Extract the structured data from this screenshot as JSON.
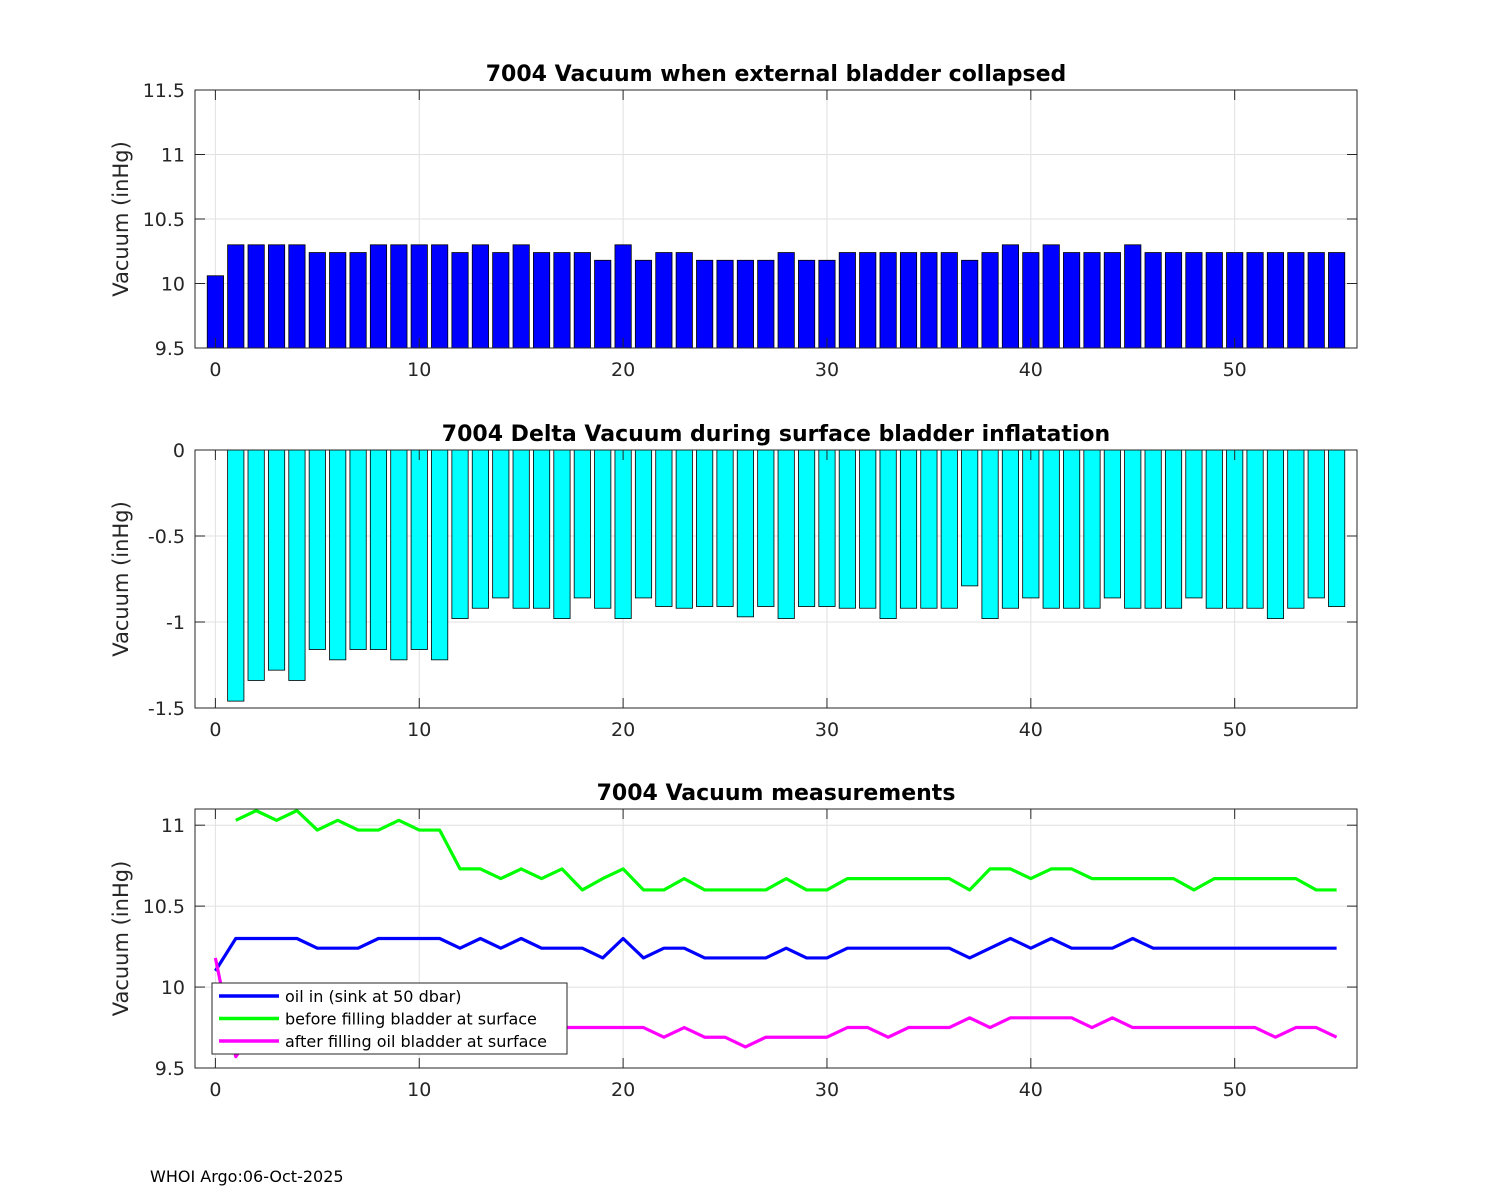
{
  "footer": "WHOI Argo:06-Oct-2025",
  "chart_data": [
    {
      "type": "bar",
      "title": "7004 Vacuum when external bladder collapsed",
      "ylabel": "Vacuum (inHg)",
      "xlim": [
        -1,
        56
      ],
      "ylim": [
        9.5,
        11.5
      ],
      "xticks": [
        0,
        10,
        20,
        30,
        40,
        50
      ],
      "yticks": [
        9.5,
        10,
        10.5,
        11,
        11.5
      ],
      "grid": true,
      "color": "#0000ff",
      "x": [
        0,
        1,
        2,
        3,
        4,
        5,
        6,
        7,
        8,
        9,
        10,
        11,
        12,
        13,
        14,
        15,
        16,
        17,
        18,
        19,
        20,
        21,
        22,
        23,
        24,
        25,
        26,
        27,
        28,
        29,
        30,
        31,
        32,
        33,
        34,
        35,
        36,
        37,
        38,
        39,
        40,
        41,
        42,
        43,
        44,
        45,
        46,
        47,
        48,
        49,
        50,
        51,
        52,
        53,
        54,
        55
      ],
      "values": [
        10.06,
        10.3,
        10.3,
        10.3,
        10.3,
        10.24,
        10.24,
        10.24,
        10.3,
        10.3,
        10.3,
        10.3,
        10.24,
        10.3,
        10.24,
        10.3,
        10.24,
        10.24,
        10.24,
        10.18,
        10.3,
        10.18,
        10.24,
        10.24,
        10.18,
        10.18,
        10.18,
        10.18,
        10.24,
        10.18,
        10.18,
        10.24,
        10.24,
        10.24,
        10.24,
        10.24,
        10.24,
        10.18,
        10.24,
        10.3,
        10.24,
        10.3,
        10.24,
        10.24,
        10.24,
        10.3,
        10.24,
        10.24,
        10.24,
        10.24,
        10.24,
        10.24,
        10.24,
        10.24,
        10.24,
        10.24
      ]
    },
    {
      "type": "bar",
      "title": "7004 Delta Vacuum during surface bladder inflatation",
      "ylabel": "Vacuum (inHg)",
      "xlim": [
        -1,
        56
      ],
      "ylim": [
        -1.5,
        0
      ],
      "xticks": [
        0,
        10,
        20,
        30,
        40,
        50
      ],
      "yticks": [
        -1.5,
        -1,
        -0.5,
        0
      ],
      "grid": true,
      "color": "#00ffff",
      "x": [
        1,
        2,
        3,
        4,
        5,
        6,
        7,
        8,
        9,
        10,
        11,
        12,
        13,
        14,
        15,
        16,
        17,
        18,
        19,
        20,
        21,
        22,
        23,
        24,
        25,
        26,
        27,
        28,
        29,
        30,
        31,
        32,
        33,
        34,
        35,
        36,
        37,
        38,
        39,
        40,
        41,
        42,
        43,
        44,
        45,
        46,
        47,
        48,
        49,
        50,
        51,
        52,
        53,
        54,
        55
      ],
      "values": [
        -1.46,
        -1.34,
        -1.28,
        -1.34,
        -1.16,
        -1.22,
        -1.16,
        -1.16,
        -1.22,
        -1.16,
        -1.22,
        -0.98,
        -0.92,
        -0.86,
        -0.92,
        -0.92,
        -0.98,
        -0.86,
        -0.92,
        -0.98,
        -0.86,
        -0.91,
        -0.92,
        -0.91,
        -0.91,
        -0.97,
        -0.91,
        -0.98,
        -0.91,
        -0.91,
        -0.92,
        -0.92,
        -0.98,
        -0.92,
        -0.92,
        -0.92,
        -0.79,
        -0.98,
        -0.92,
        -0.86,
        -0.92,
        -0.92,
        -0.92,
        -0.86,
        -0.92,
        -0.92,
        -0.92,
        -0.86,
        -0.92,
        -0.92,
        -0.92,
        -0.98,
        -0.92,
        -0.86,
        -0.91
      ]
    },
    {
      "type": "line",
      "title": "7004 Vacuum measurements",
      "ylabel": "Vacuum (inHg)",
      "xlim": [
        -1,
        56
      ],
      "ylim": [
        9.5,
        11.1
      ],
      "xticks": [
        0,
        10,
        20,
        30,
        40,
        50
      ],
      "yticks": [
        9.5,
        10,
        10.5,
        11
      ],
      "grid": true,
      "legend_position": "lower-left",
      "series": [
        {
          "name": "oil in (sink at 50 dbar)",
          "color": "#0000ff",
          "x": [
            0,
            1,
            2,
            3,
            4,
            5,
            6,
            7,
            8,
            9,
            10,
            11,
            12,
            13,
            14,
            15,
            16,
            17,
            18,
            19,
            20,
            21,
            22,
            23,
            24,
            25,
            26,
            27,
            28,
            29,
            30,
            31,
            32,
            33,
            34,
            35,
            36,
            37,
            38,
            39,
            40,
            41,
            42,
            43,
            44,
            45,
            46,
            47,
            48,
            49,
            50,
            51,
            52,
            53,
            54,
            55
          ],
          "values": [
            10.1,
            10.3,
            10.3,
            10.3,
            10.3,
            10.24,
            10.24,
            10.24,
            10.3,
            10.3,
            10.3,
            10.3,
            10.24,
            10.3,
            10.24,
            10.3,
            10.24,
            10.24,
            10.24,
            10.18,
            10.3,
            10.18,
            10.24,
            10.24,
            10.18,
            10.18,
            10.18,
            10.18,
            10.24,
            10.18,
            10.18,
            10.24,
            10.24,
            10.24,
            10.24,
            10.24,
            10.24,
            10.18,
            10.24,
            10.3,
            10.24,
            10.3,
            10.24,
            10.24,
            10.24,
            10.3,
            10.24,
            10.24,
            10.24,
            10.24,
            10.24,
            10.24,
            10.24,
            10.24,
            10.24,
            10.24
          ]
        },
        {
          "name": "before filling bladder at surface",
          "color": "#00ff00",
          "x": [
            1,
            2,
            3,
            4,
            5,
            6,
            7,
            8,
            9,
            10,
            11,
            12,
            13,
            14,
            15,
            16,
            17,
            18,
            19,
            20,
            21,
            22,
            23,
            24,
            25,
            26,
            27,
            28,
            29,
            30,
            31,
            32,
            33,
            34,
            35,
            36,
            37,
            38,
            39,
            40,
            41,
            42,
            43,
            44,
            45,
            46,
            47,
            48,
            49,
            50,
            51,
            52,
            53,
            54,
            55
          ],
          "values": [
            11.03,
            11.09,
            11.03,
            11.09,
            10.97,
            11.03,
            10.97,
            10.97,
            11.03,
            10.97,
            10.97,
            10.73,
            10.73,
            10.67,
            10.73,
            10.67,
            10.73,
            10.6,
            10.67,
            10.73,
            10.6,
            10.6,
            10.67,
            10.6,
            10.6,
            10.6,
            10.6,
            10.67,
            10.6,
            10.6,
            10.67,
            10.67,
            10.67,
            10.67,
            10.67,
            10.67,
            10.6,
            10.73,
            10.73,
            10.67,
            10.73,
            10.73,
            10.67,
            10.67,
            10.67,
            10.67,
            10.67,
            10.6,
            10.67,
            10.67,
            10.67,
            10.67,
            10.67,
            10.6,
            10.6
          ]
        },
        {
          "name": "after filling oil bladder at surface",
          "color": "#ff00ff",
          "x": [
            0,
            1,
            2,
            3,
            4,
            5,
            6,
            7,
            8,
            9,
            10,
            11,
            12,
            13,
            14,
            15,
            16,
            17,
            18,
            19,
            20,
            21,
            22,
            23,
            24,
            25,
            26,
            27,
            28,
            29,
            30,
            31,
            32,
            33,
            34,
            35,
            36,
            37,
            38,
            39,
            40,
            41,
            42,
            43,
            44,
            45,
            46,
            47,
            48,
            49,
            50,
            51,
            52,
            53,
            54,
            55
          ],
          "values": [
            10.18,
            9.57,
            9.75,
            9.75,
            9.75,
            9.75,
            9.75,
            9.75,
            9.75,
            9.75,
            9.75,
            9.75,
            9.75,
            9.75,
            9.75,
            9.75,
            9.75,
            9.75,
            9.75,
            9.75,
            9.75,
            9.75,
            9.69,
            9.75,
            9.69,
            9.69,
            9.63,
            9.69,
            9.69,
            9.69,
            9.69,
            9.75,
            9.75,
            9.69,
            9.75,
            9.75,
            9.75,
            9.81,
            9.75,
            9.81,
            9.81,
            9.81,
            9.81,
            9.75,
            9.81,
            9.75,
            9.75,
            9.75,
            9.75,
            9.75,
            9.75,
            9.75,
            9.69,
            9.75,
            9.75,
            9.69
          ]
        }
      ]
    }
  ]
}
